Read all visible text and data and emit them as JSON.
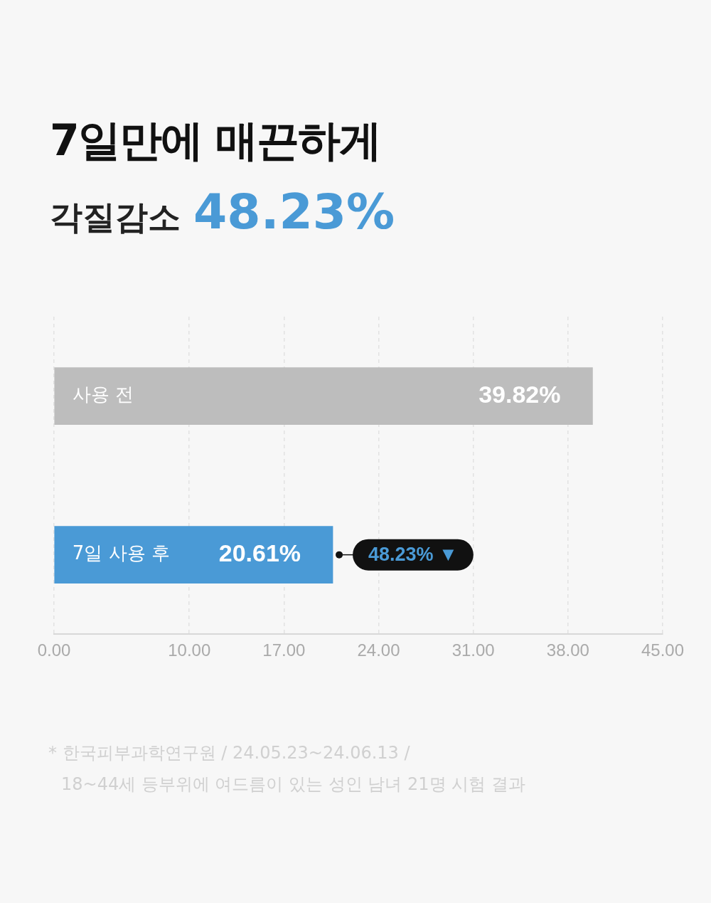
{
  "chart_data": {
    "type": "bar",
    "orientation": "horizontal",
    "title": "7일만에 매끈하게",
    "subtitle": "각질감소 48.23%",
    "categories": [
      "사용 전",
      "7일 사용 후"
    ],
    "values": [
      39.82,
      20.61
    ],
    "colors": [
      "#bdbdbd",
      "#4a9ad6"
    ],
    "value_labels": [
      "39.82%",
      "20.61%"
    ],
    "xlim": [
      0,
      45
    ],
    "xticks": [
      {
        "value": 0,
        "label": "0.00"
      },
      {
        "value": 10,
        "label": "10.00"
      },
      {
        "value": 17,
        "label": "17.00"
      },
      {
        "value": 24,
        "label": "24.00"
      },
      {
        "value": 31,
        "label": "31.00"
      },
      {
        "value": 38,
        "label": "38.00"
      },
      {
        "value": 45,
        "label": "45.00"
      }
    ],
    "grid": "x",
    "annotations": [
      {
        "text": "48.23% ▼",
        "x": 20.61,
        "y": "7일 사용 후"
      },
      "* 한국피부과학연구원 / 24.05.23~24.06.13 /",
      "18~44세 등부위에 여드름이 있는 성인 남녀 21명 시험 결과"
    ]
  }
}
